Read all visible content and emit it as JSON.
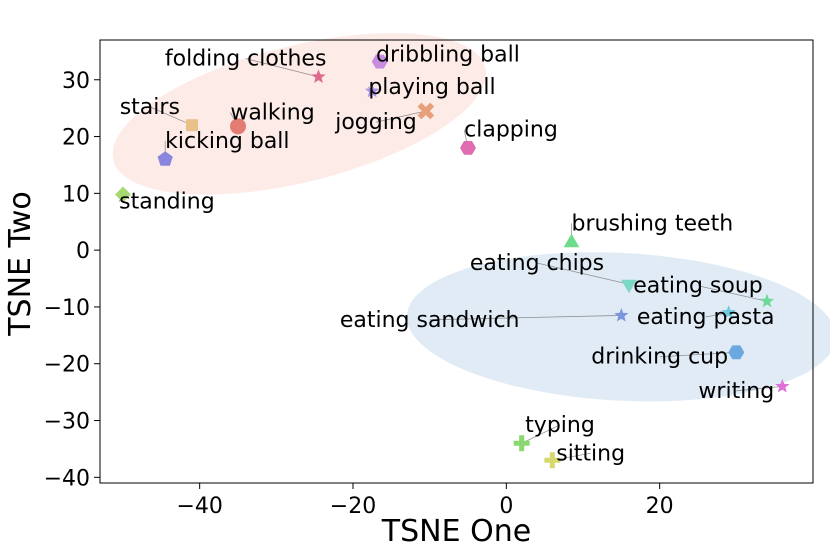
{
  "chart_data": {
    "type": "scatter",
    "title": "",
    "xlabel": "TSNE One",
    "ylabel": "TSNE Two",
    "xlim": [
      -53,
      40
    ],
    "ylim": [
      -41,
      37
    ],
    "xticks": [
      -40,
      -20,
      0,
      20
    ],
    "yticks": [
      30,
      20,
      10,
      0,
      -10,
      -20,
      -30,
      -40
    ],
    "xtick_labels": [
      "−40",
      "−20",
      "0",
      "20"
    ],
    "ytick_labels": [
      "30",
      "20",
      "10",
      "0",
      "−10",
      "−20",
      "−30",
      "−40"
    ],
    "grid": false,
    "clusters": [
      {
        "cx": -27,
        "cy": 24,
        "rx": 25,
        "ry": 12,
        "angle": 14,
        "color": "#fde8e4"
      },
      {
        "cx": 15,
        "cy": -13.5,
        "rx": 28,
        "ry": 13,
        "angle": -3,
        "color": "#dbe8f3"
      }
    ],
    "points": [
      {
        "label": "folding clothes",
        "x": -24.5,
        "y": 30.5,
        "marker": "star",
        "color": "#e06a8e",
        "lx": -34,
        "ly": 32.5,
        "anchor": "middle"
      },
      {
        "label": "dribbling ball",
        "x": -16.5,
        "y": 33.2,
        "marker": "hexagon",
        "color": "#c78be0",
        "lx": -17,
        "ly": 33.2,
        "anchor": "start"
      },
      {
        "label": "playing ball",
        "x": -17.5,
        "y": 28,
        "marker": "star",
        "color": "#a98ee6",
        "lx": -18,
        "ly": 27.5,
        "anchor": "start"
      },
      {
        "label": "jogging",
        "x": -10.5,
        "y": 24.5,
        "marker": "x",
        "color": "#e8a07a",
        "lx": -17,
        "ly": 21.3,
        "anchor": "middle"
      },
      {
        "label": "stairs",
        "x": -41,
        "y": 22,
        "marker": "square",
        "color": "#e8c08a",
        "lx": -46.5,
        "ly": 24,
        "anchor": "middle"
      },
      {
        "label": "walking",
        "x": -35,
        "y": 21.8,
        "marker": "circle",
        "color": "#e37c73",
        "lx": -36,
        "ly": 23,
        "anchor": "start"
      },
      {
        "label": "kicking ball",
        "x": -44.5,
        "y": 16,
        "marker": "pentagon",
        "color": "#8a86de",
        "lx": -44.5,
        "ly": 18,
        "anchor": "start"
      },
      {
        "label": "clapping",
        "x": -5,
        "y": 18,
        "marker": "hexagon",
        "color": "#e06cb0",
        "lx": -5.5,
        "ly": 20,
        "anchor": "start"
      },
      {
        "label": "standing",
        "x": -50,
        "y": 9.8,
        "marker": "diamond",
        "color": "#a8d870",
        "lx": -50.5,
        "ly": 7.3,
        "anchor": "start"
      },
      {
        "label": "brushing teeth",
        "x": 8.5,
        "y": 1.3,
        "marker": "triangle",
        "color": "#6cdb8a",
        "lx": 8.5,
        "ly": 3.5,
        "anchor": "start"
      },
      {
        "label": "eating chips",
        "x": 16,
        "y": -6,
        "marker": "tri_down",
        "color": "#7ad8c4",
        "lx": 4,
        "ly": -3.5,
        "anchor": "middle"
      },
      {
        "label": "eating soup",
        "x": 34,
        "y": -9,
        "marker": "star",
        "color": "#6cdb98",
        "lx": 25,
        "ly": -7.5,
        "anchor": "middle"
      },
      {
        "label": "eating sandwich",
        "x": 15,
        "y": -11.5,
        "marker": "star",
        "color": "#7c96de",
        "lx": -10,
        "ly": -13.5,
        "anchor": "middle"
      },
      {
        "label": "eating pasta",
        "x": 29,
        "y": -11,
        "marker": "star",
        "color": "#6cc8dc",
        "lx": 26,
        "ly": -13,
        "anchor": "middle"
      },
      {
        "label": "drinking cup",
        "x": 30,
        "y": -18,
        "marker": "hexagon",
        "color": "#6ca8e0",
        "lx": 20,
        "ly": -20,
        "anchor": "middle"
      },
      {
        "label": "writing",
        "x": 36,
        "y": -24,
        "marker": "star",
        "color": "#e070d8",
        "lx": 30,
        "ly": -26,
        "anchor": "middle"
      },
      {
        "label": "typing",
        "x": 2,
        "y": -34,
        "marker": "plus",
        "color": "#8ad870",
        "lx": 7,
        "ly": -32,
        "anchor": "middle"
      },
      {
        "label": "sitting",
        "x": 6,
        "y": -37,
        "marker": "plus",
        "color": "#d8d870",
        "lx": 11,
        "ly": -37,
        "anchor": "middle"
      }
    ]
  }
}
